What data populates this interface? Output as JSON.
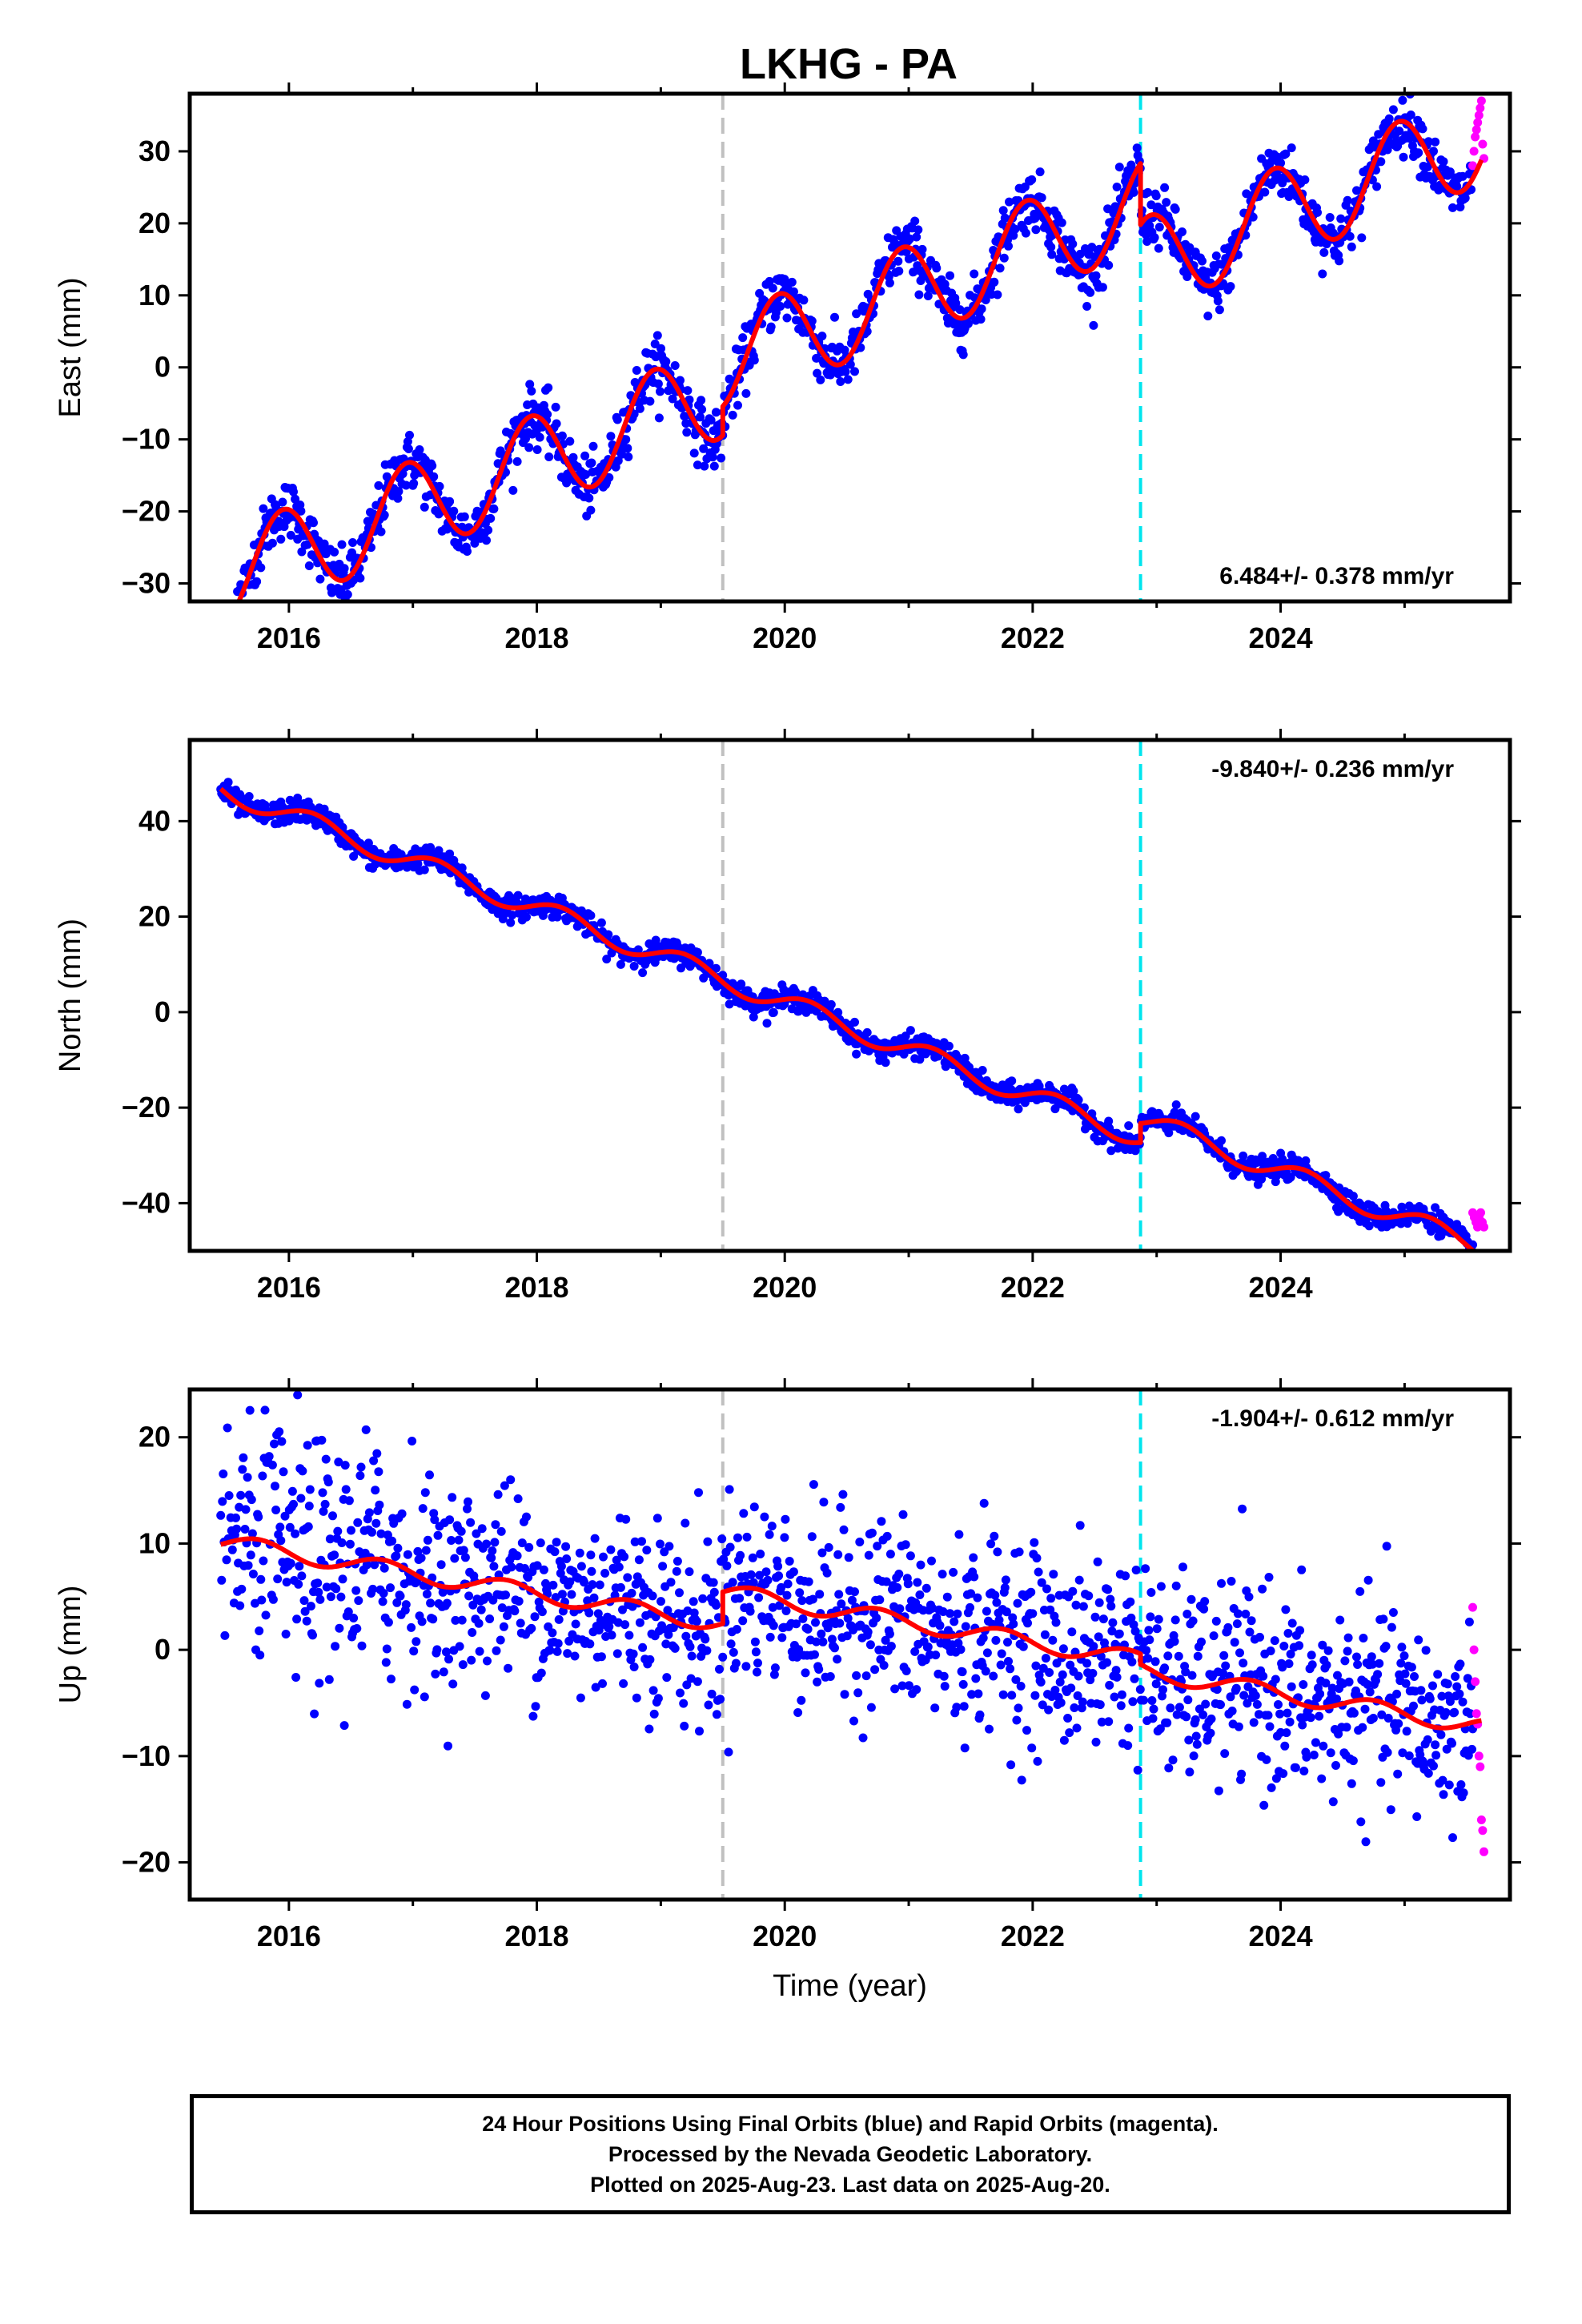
{
  "title": "LKHG - PA",
  "caption": {
    "line1": "24 Hour Positions Using Final Orbits (blue) and Rapid Orbits (magenta).",
    "line2": "Processed by the Nevada Geodetic Laboratory.",
    "line3": "Plotted on 2025-Aug-23. Last data on 2025-Aug-20."
  },
  "colors": {
    "final_orbits": "#0000ff",
    "rapid_orbits": "#ff00ff",
    "model_fit": "#ff0000",
    "event_line_gray": "#c0c0c0",
    "event_line_cyan": "#00e5ee"
  },
  "chart_data": [
    {
      "type": "scatter",
      "id": "east",
      "ylabel": "East (mm)",
      "xlabel": "",
      "xlim": [
        2015.2,
        2025.85
      ],
      "ylim": [
        -32.5,
        38
      ],
      "xticks": [
        2016,
        2018,
        2020,
        2022,
        2024
      ],
      "yticks": [
        -30,
        -20,
        -10,
        0,
        10,
        20,
        30
      ],
      "rate_label": "6.484+/- 0.378 mm/yr",
      "rate_position": "bottom-right",
      "events": [
        {
          "x": 2019.5,
          "color": "#c0c0c0"
        },
        {
          "x": 2022.87,
          "color": "#00e5ee"
        }
      ],
      "model": {
        "start": 2015.45,
        "end": 2025.62,
        "slope": 6.484,
        "offset_2020": 0,
        "annual_amp": 6.5,
        "annual_phase": 2015.95,
        "steps": [
          {
            "x": 2019.5,
            "dy": 4
          },
          {
            "x": 2022.87,
            "dy": -8.5
          }
        ]
      },
      "scatter_noise": 2.0,
      "final_orbits_end": 2025.55,
      "rapid_orbits": {
        "start": 2025.55,
        "end": 2025.64,
        "values": [
          28,
          30,
          32,
          33,
          34,
          35,
          36,
          37,
          31,
          29
        ]
      }
    },
    {
      "type": "scatter",
      "id": "north",
      "ylabel": "North (mm)",
      "xlabel": "",
      "xlim": [
        2015.2,
        2025.85
      ],
      "ylim": [
        -50,
        57
      ],
      "xticks": [
        2016,
        2018,
        2020,
        2022,
        2024
      ],
      "yticks": [
        -40,
        -20,
        0,
        20,
        40
      ],
      "rate_label": "-9.840+/- 0.236 mm/yr",
      "rate_position": "top-right",
      "events": [
        {
          "x": 2019.5,
          "color": "#c0c0c0"
        },
        {
          "x": 2022.87,
          "color": "#00e5ee"
        }
      ],
      "model": {
        "start": 2015.45,
        "end": 2025.62,
        "slope": -9.84,
        "offset_2020": 2,
        "annual_amp": 2.2,
        "annual_phase": 2016.2,
        "steps": [
          {
            "x": 2019.5,
            "dy": 0
          },
          {
            "x": 2022.87,
            "dy": 4
          }
        ]
      },
      "scatter_noise": 1.2,
      "final_orbits_end": 2025.55,
      "rapid_orbits": {
        "start": 2025.55,
        "end": 2025.64,
        "values": [
          -42,
          -43,
          -44,
          -45,
          -43,
          -42,
          -44,
          -45
        ]
      }
    },
    {
      "type": "scatter",
      "id": "up",
      "ylabel": "Up (mm)",
      "xlabel": "Time (year)",
      "xlim": [
        2015.2,
        2025.85
      ],
      "ylim": [
        -23.5,
        24.5
      ],
      "xticks": [
        2016,
        2018,
        2020,
        2022,
        2024
      ],
      "yticks": [
        -20,
        -10,
        0,
        10,
        20
      ],
      "rate_label": "-1.904+/- 0.612 mm/yr",
      "rate_position": "top-right",
      "events": [
        {
          "x": 2019.5,
          "color": "#c0c0c0"
        },
        {
          "x": 2022.87,
          "color": "#00e5ee"
        }
      ],
      "model": {
        "start": 2015.45,
        "end": 2025.62,
        "slope": -1.904,
        "offset_2020": 1.5,
        "annual_amp": 0.8,
        "annual_phase": 2015.75,
        "steps": [
          {
            "x": 2019.5,
            "dy": 3
          },
          {
            "x": 2022.87,
            "dy": -1
          }
        ]
      },
      "scatter_noise": 4.5,
      "final_orbits_end": 2025.55,
      "rapid_orbits": {
        "start": 2025.55,
        "end": 2025.64,
        "values": [
          4,
          0,
          -3,
          -6,
          -7,
          -10,
          -11,
          -16,
          -17,
          -19
        ]
      }
    }
  ]
}
